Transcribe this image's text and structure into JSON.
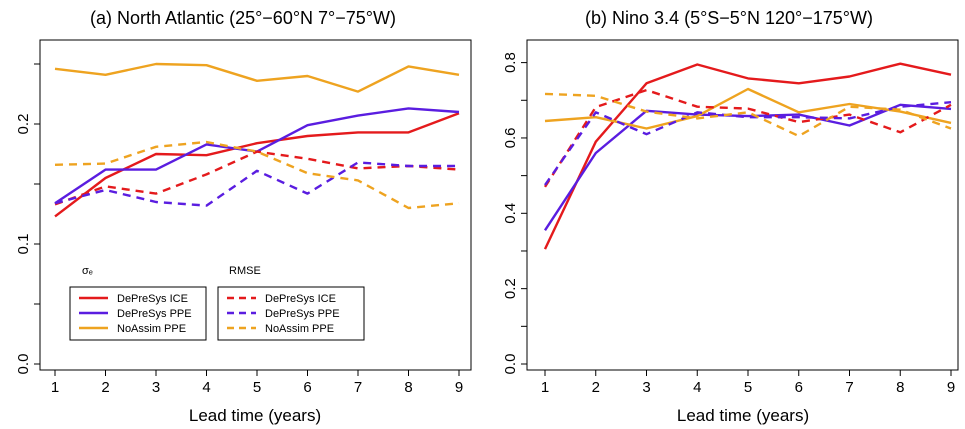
{
  "colors": {
    "ice": "#e41a1c",
    "ppe": "#5a1de0",
    "noassim": "#eea320"
  },
  "legend": {
    "sigma_title": "σₑ",
    "rmse_title": "RMSE",
    "entries": [
      "DePreSys ICE",
      "DePreSys PPE",
      "NoAssim PPE"
    ]
  },
  "chart_data": [
    {
      "type": "line",
      "title": "(a) North Atlantic (25°−60°N 7°−75°W)",
      "xlabel": "Lead time (years)",
      "ylabel": "",
      "x": [
        1,
        2,
        3,
        4,
        5,
        6,
        7,
        8,
        9
      ],
      "xlim": [
        1,
        9
      ],
      "ylim": [
        0.0,
        0.27
      ],
      "yticks": [
        0.0,
        0.1,
        0.2
      ],
      "ytick_labels": [
        "0.0",
        "0.1",
        "0.2"
      ],
      "series": [
        {
          "name": "DePreSys ICE",
          "metric": "sigma_e",
          "style": "solid",
          "color": "ice",
          "values": [
            0.123,
            0.155,
            0.175,
            0.174,
            0.184,
            0.19,
            0.193,
            0.193,
            0.209
          ]
        },
        {
          "name": "DePreSys PPE",
          "metric": "sigma_e",
          "style": "solid",
          "color": "ppe",
          "values": [
            0.134,
            0.162,
            0.162,
            0.183,
            0.177,
            0.199,
            0.207,
            0.213,
            0.21
          ]
        },
        {
          "name": "NoAssim PPE",
          "metric": "sigma_e",
          "style": "solid",
          "color": "noassim",
          "values": [
            0.246,
            0.241,
            0.25,
            0.249,
            0.236,
            0.24,
            0.227,
            0.248,
            0.241
          ]
        },
        {
          "name": "DePreSys ICE",
          "metric": "rmse",
          "style": "dashed",
          "color": "ice",
          "values": [
            0.133,
            0.148,
            0.142,
            0.158,
            0.177,
            0.171,
            0.163,
            0.165,
            0.162
          ]
        },
        {
          "name": "DePreSys PPE",
          "metric": "rmse",
          "style": "dashed",
          "color": "ppe",
          "values": [
            0.134,
            0.145,
            0.135,
            0.132,
            0.161,
            0.142,
            0.168,
            0.165,
            0.165
          ]
        },
        {
          "name": "NoAssim PPE",
          "metric": "rmse",
          "style": "dashed",
          "color": "noassim",
          "values": [
            0.166,
            0.167,
            0.181,
            0.185,
            0.177,
            0.159,
            0.153,
            0.13,
            0.134
          ]
        }
      ]
    },
    {
      "type": "line",
      "title": "(b) Nino 3.4 (5°S−5°N 120°−175°W)",
      "xlabel": "Lead time (years)",
      "ylabel": "",
      "x": [
        1,
        2,
        3,
        4,
        5,
        6,
        7,
        8,
        9
      ],
      "xlim": [
        1,
        9
      ],
      "ylim": [
        0.0,
        0.86
      ],
      "yticks": [
        0.0,
        0.2,
        0.4,
        0.6,
        0.8
      ],
      "ytick_labels": [
        "0.0",
        "0.2",
        "0.4",
        "0.6",
        "0.8"
      ],
      "series": [
        {
          "name": "DePreSys ICE",
          "metric": "sigma_e",
          "style": "solid",
          "color": "ice",
          "values": [
            0.305,
            0.59,
            0.745,
            0.795,
            0.758,
            0.745,
            0.763,
            0.797,
            0.768
          ]
        },
        {
          "name": "DePreSys PPE",
          "metric": "sigma_e",
          "style": "solid",
          "color": "ppe",
          "values": [
            0.355,
            0.56,
            0.672,
            0.662,
            0.658,
            0.662,
            0.633,
            0.688,
            0.677
          ]
        },
        {
          "name": "NoAssim PPE",
          "metric": "sigma_e",
          "style": "solid",
          "color": "noassim",
          "values": [
            0.645,
            0.655,
            0.625,
            0.658,
            0.73,
            0.668,
            0.69,
            0.67,
            0.64
          ]
        },
        {
          "name": "DePreSys ICE",
          "metric": "rmse",
          "style": "dashed",
          "color": "ice",
          "values": [
            0.47,
            0.682,
            0.727,
            0.683,
            0.678,
            0.642,
            0.662,
            0.615,
            0.688
          ]
        },
        {
          "name": "DePreSys PPE",
          "metric": "rmse",
          "style": "dashed",
          "color": "ppe",
          "values": [
            0.475,
            0.668,
            0.61,
            0.668,
            0.655,
            0.655,
            0.652,
            0.683,
            0.695
          ]
        },
        {
          "name": "NoAssim PPE",
          "metric": "rmse",
          "style": "dashed",
          "color": "noassim",
          "values": [
            0.717,
            0.712,
            0.67,
            0.652,
            0.668,
            0.605,
            0.683,
            0.675,
            0.625
          ]
        }
      ]
    }
  ]
}
